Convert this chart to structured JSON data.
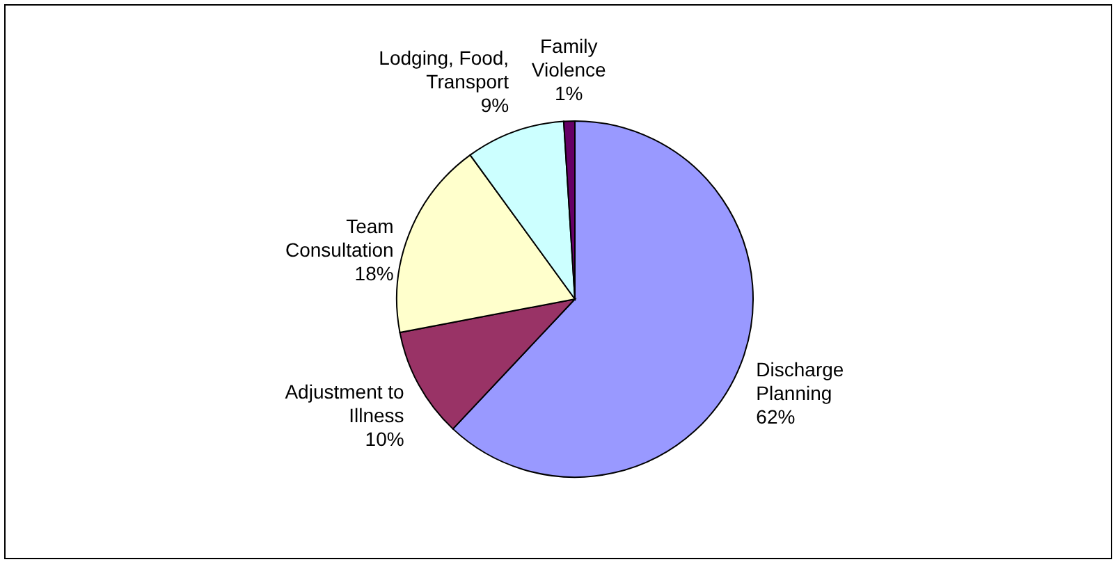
{
  "chart_data": {
    "type": "pie",
    "categories": [
      "Discharge Planning",
      "Adjustment to Illness",
      "Team Consultation",
      "Lodging, Food, Transport",
      "Family Violence"
    ],
    "values": [
      62,
      10,
      18,
      9,
      1
    ],
    "colors": [
      "#9999ff",
      "#993366",
      "#ffffcc",
      "#ccffff",
      "#660066"
    ],
    "value_labels": [
      "62%",
      "10%",
      "18%",
      "9%",
      "1%"
    ]
  }
}
